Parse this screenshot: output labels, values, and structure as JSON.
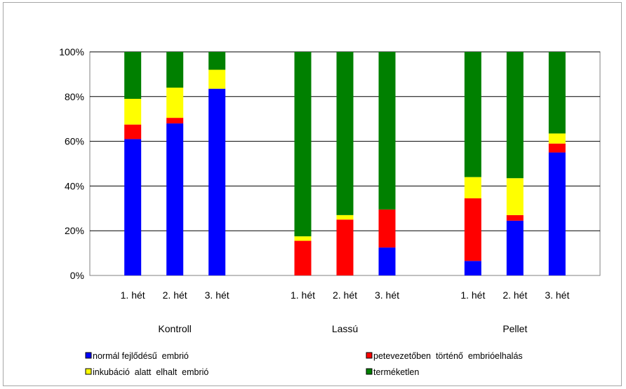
{
  "chart_data": {
    "type": "bar",
    "stacked": true,
    "percent": true,
    "groups": [
      {
        "name": "Kontroll",
        "categories": [
          "1. hét",
          "2. hét",
          "3. hét"
        ]
      },
      {
        "name": "Lassú",
        "categories": [
          "1. hét",
          "2. hét",
          "3. hét"
        ]
      },
      {
        "name": "Pellet",
        "categories": [
          "1. hét",
          "2. hét",
          "3. hét"
        ]
      }
    ],
    "series": [
      {
        "name": "normál fejlődésű  embrió",
        "color": "#0000FF",
        "values": [
          61,
          68,
          83.5,
          0,
          0,
          12.5,
          6.5,
          24.5,
          55
        ]
      },
      {
        "name": "petevezetőben  történő  embrióelhalás",
        "color": "#FF0000",
        "values": [
          6.5,
          2.5,
          0,
          15.5,
          25,
          17,
          28,
          2.5,
          4
        ]
      },
      {
        "name": "inkubáció  alatt  elhalt  embrió",
        "color": "#FFFF00",
        "values": [
          11.5,
          13.5,
          8.5,
          2,
          2,
          0,
          9.5,
          16.5,
          4.5
        ]
      },
      {
        "name": "terméketlen",
        "color": "#008000",
        "values": [
          21,
          16,
          8,
          82.5,
          73,
          70.5,
          56,
          56.5,
          36.5
        ]
      }
    ],
    "y_ticks": [
      "0%",
      "20%",
      "40%",
      "60%",
      "80%",
      "100%"
    ],
    "ylim": [
      0,
      100
    ],
    "grid": true,
    "legend_position": "bottom"
  }
}
